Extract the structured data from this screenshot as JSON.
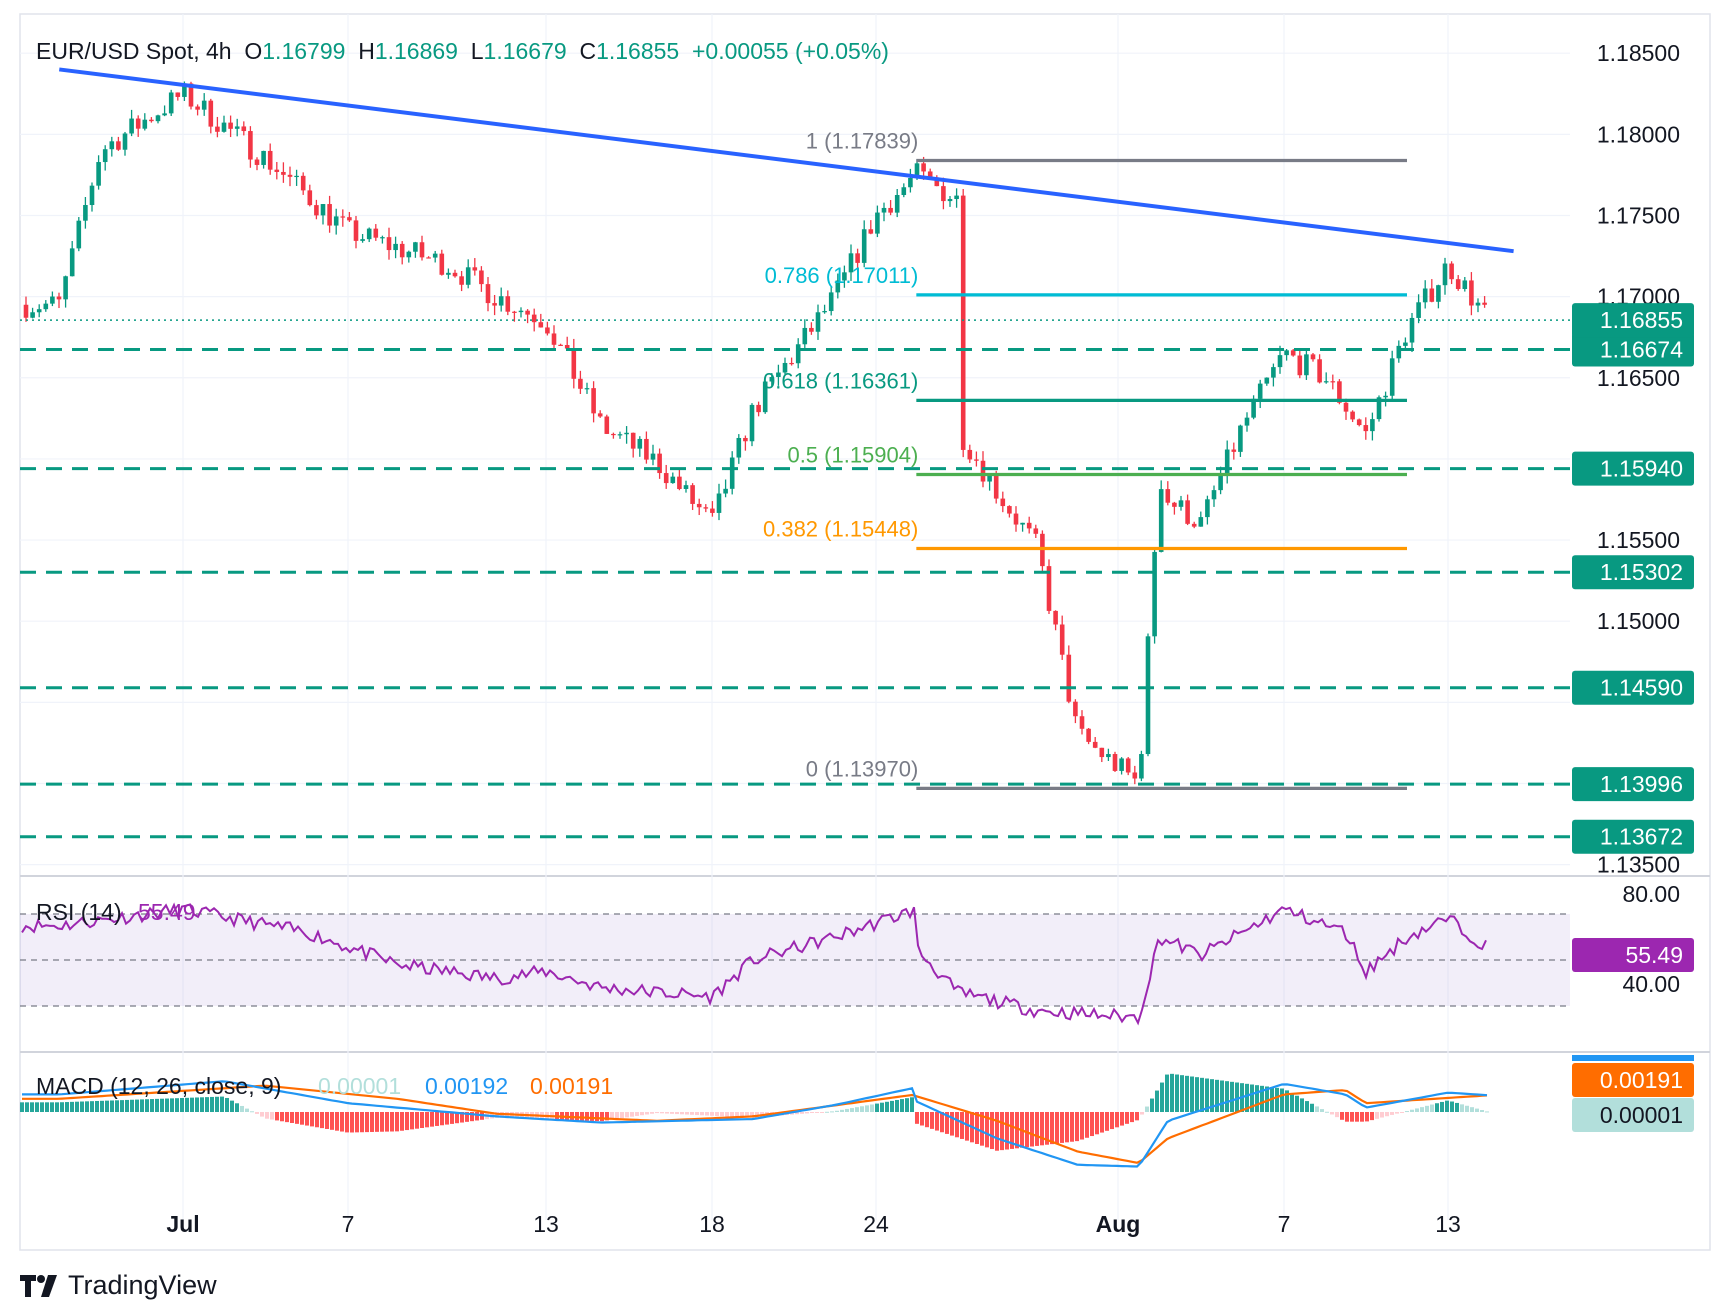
{
  "header": {
    "symbol": "EUR/USD Spot, 4h",
    "o_label": "O",
    "open": "1.16799",
    "h_label": "H",
    "high": "1.16869",
    "l_label": "L",
    "low": "1.16679",
    "c_label": "C",
    "close": "1.16855",
    "change": "+0.00055 (+0.05%)"
  },
  "brand": "TradingView",
  "colors": {
    "up": "#089981",
    "down": "#f23645",
    "trendline": "#2962ff",
    "fib_1": "#787b86",
    "fib_786": "#00bcd4",
    "fib_618": "#089981",
    "fib_5": "#4caf50",
    "fib_382": "#ff9800",
    "fib_0": "#787b86",
    "support": "#089981",
    "rsi": "#9c27b0",
    "macd": "#2196f3",
    "signal": "#ff6d00"
  },
  "chart_data": {
    "type": "candlestick",
    "title": "EUR/USD Spot, 4h",
    "x_tick_labels": [
      "Jul",
      "7",
      "13",
      "18",
      "24",
      "Aug",
      "7",
      "13"
    ],
    "y_tick_labels": [
      "1.18500",
      "1.18000",
      "1.17500",
      "1.17000",
      "1.16500",
      "1.15500",
      "1.15000",
      "1.13500"
    ],
    "ylim": [
      1.1343,
      1.1868
    ],
    "current_price": "1.16855",
    "price_path": [
      [
        "Jun 26",
        1.1695
      ],
      [
        "Jun 30",
        1.179
      ],
      [
        "Jul 1",
        1.1825
      ],
      [
        "Jul 3",
        1.1785
      ],
      [
        "Jul 7",
        1.174
      ],
      [
        "Jul 9",
        1.172
      ],
      [
        "Jul 11",
        1.17
      ],
      [
        "Jul 13",
        1.1685
      ],
      [
        "Jul 15",
        1.162
      ],
      [
        "Jul 16",
        1.1598
      ],
      [
        "Jul 17",
        1.156
      ],
      [
        "Jul 18",
        1.163
      ],
      [
        "Jul 22",
        1.17
      ],
      [
        "Jul 23",
        1.175
      ],
      [
        "Jul 24",
        1.1775
      ],
      [
        "Jul 25",
        1.176
      ],
      [
        "Jul 27",
        1.174
      ],
      [
        "Jul 28",
        1.162
      ],
      [
        "Jul 29",
        1.158
      ],
      [
        "Jul 30",
        1.1545
      ],
      [
        "Jul 31",
        1.143
      ],
      [
        "Aug 1",
        1.14
      ],
      [
        "Aug 1 late",
        1.159
      ],
      [
        "Aug 4",
        1.1575
      ],
      [
        "Aug 5",
        1.156
      ],
      [
        "Aug 6",
        1.162
      ],
      [
        "Aug 7",
        1.1665
      ],
      [
        "Aug 8",
        1.165
      ],
      [
        "Aug 11",
        1.1615
      ],
      [
        "Aug 12",
        1.168
      ],
      [
        "Aug 13",
        1.172
      ],
      [
        "Aug 14",
        1.1685
      ]
    ],
    "trendline": {
      "start": [
        "Jun 28",
        1.184
      ],
      "end": [
        "Aug 15",
        1.1728
      ]
    },
    "fibonacci": [
      {
        "label": "1 (1.17839)",
        "value": 1.17839
      },
      {
        "label": "0.786 (1.17011)",
        "value": 1.17011
      },
      {
        "label": "0.618 (1.16361)",
        "value": 1.16361
      },
      {
        "label": "0.5 (1.15904)",
        "value": 1.15904
      },
      {
        "label": "0.382 (1.15448)",
        "value": 1.15448
      },
      {
        "label": "0 (1.13970)",
        "value": 1.1397
      }
    ],
    "support_levels": [
      {
        "label": "1.16674",
        "value": 1.16674
      },
      {
        "label": "1.15940",
        "value": 1.1594
      },
      {
        "label": "1.15302",
        "value": 1.15302
      },
      {
        "label": "1.14590",
        "value": 1.1459
      },
      {
        "label": "1.13996",
        "value": 1.13996
      },
      {
        "label": "1.13672",
        "value": 1.13672
      }
    ],
    "rsi": {
      "label": "RSI (14)",
      "value": "55.49",
      "y_tick_labels": [
        "80.00",
        "40.00"
      ],
      "overbought": 70,
      "oversold": 30,
      "mid": 50,
      "path": [
        [
          "Jun 26",
          65
        ],
        [
          "Jul 1",
          72
        ],
        [
          "Jul 4",
          62
        ],
        [
          "Jul 8",
          48
        ],
        [
          "Jul 10",
          42
        ],
        [
          "Jul 13",
          45
        ],
        [
          "Jul 15",
          38
        ],
        [
          "Jul 17",
          34
        ],
        [
          "Jul 19",
          50
        ],
        [
          "Jul 22",
          60
        ],
        [
          "Jul 24",
          72
        ],
        [
          "Jul 27",
          55
        ],
        [
          "Jul 28",
          36
        ],
        [
          "Jul 30",
          28
        ],
        [
          "Aug 1",
          25
        ],
        [
          "Aug 1 late",
          60
        ],
        [
          "Aug 5",
          52
        ],
        [
          "Aug 7",
          72
        ],
        [
          "Aug 9",
          62
        ],
        [
          "Aug 11",
          45
        ],
        [
          "Aug 12",
          60
        ],
        [
          "Aug 13",
          68
        ],
        [
          "Aug 14",
          55
        ]
      ]
    },
    "macd": {
      "label": "MACD (12, 26, close, 9)",
      "histogram": "0.00001",
      "macd": "0.00192",
      "signal": "0.00191",
      "signal_tag": "0.00191",
      "histogram_tag": "0.00001",
      "macd_path": [
        [
          "Jun 26",
          0.002
        ],
        [
          "Jul 2",
          0.0035
        ],
        [
          "Jul 7",
          0.001
        ],
        [
          "Jul 11",
          -0.0005
        ],
        [
          "Jul 15",
          -0.0012
        ],
        [
          "Jul 18",
          -0.0008
        ],
        [
          "Jul 22",
          0.0008
        ],
        [
          "Jul 24",
          0.0028
        ],
        [
          "Jul 27",
          0.0012
        ],
        [
          "Jul 29",
          -0.003
        ],
        [
          "Jul 31",
          -0.006
        ],
        [
          "Aug 1",
          -0.0062
        ],
        [
          "Aug 4",
          -0.001
        ],
        [
          "Aug 7",
          0.0032
        ],
        [
          "Aug 9",
          0.002
        ],
        [
          "Aug 11",
          0.0005
        ],
        [
          "Aug 13",
          0.0022
        ],
        [
          "Aug 14",
          0.0019
        ]
      ],
      "signal_path": [
        [
          "Jun 26",
          0.0015
        ],
        [
          "Jul 3",
          0.003
        ],
        [
          "Jul 8",
          0.0015
        ],
        [
          "Jul 12",
          -0.0002
        ],
        [
          "Jul 16",
          -0.001
        ],
        [
          "Jul 20",
          -0.0005
        ],
        [
          "Jul 24",
          0.002
        ],
        [
          "Jul 27",
          0.0018
        ],
        [
          "Jul 29",
          -0.001
        ],
        [
          "Jul 31",
          -0.0045
        ],
        [
          "Aug 1",
          -0.0058
        ],
        [
          "Aug 4",
          -0.003
        ],
        [
          "Aug 7",
          0.002
        ],
        [
          "Aug 9",
          0.0025
        ],
        [
          "Aug 11",
          0.001
        ],
        [
          "Aug 13",
          0.0016
        ],
        [
          "Aug 14",
          0.0019
        ]
      ]
    }
  }
}
